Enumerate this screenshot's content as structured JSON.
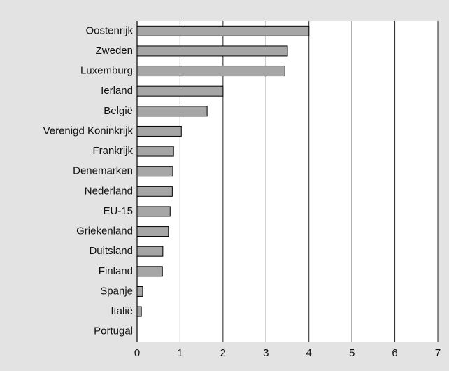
{
  "chart_data": {
    "type": "bar",
    "orientation": "horizontal",
    "categories": [
      "Oostenrijk",
      "Zweden",
      "Luxemburg",
      "Ierland",
      "België",
      "Verenigd Koninkrijk",
      "Frankrijk",
      "Denemarken",
      "Nederland",
      "EU-15",
      "Griekenland",
      "Duitsland",
      "Finland",
      "Spanje",
      "Italië",
      "Portugal"
    ],
    "values": [
      4.0,
      3.5,
      3.44,
      2.0,
      1.63,
      1.03,
      0.85,
      0.83,
      0.82,
      0.77,
      0.73,
      0.6,
      0.59,
      0.13,
      0.1,
      0
    ],
    "color": "#a6a6a6",
    "xlim": [
      0,
      7
    ],
    "xticks": [
      0,
      1,
      2,
      3,
      4,
      5,
      6,
      7
    ],
    "grid": true
  }
}
